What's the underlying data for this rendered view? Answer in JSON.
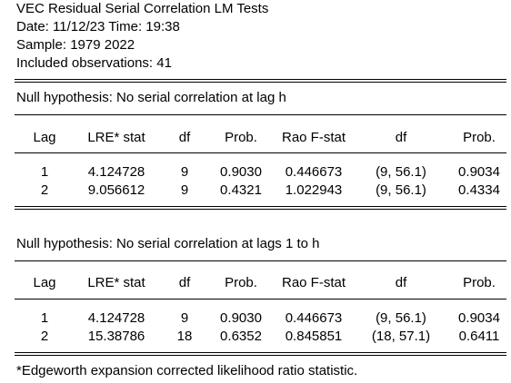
{
  "header": {
    "title": "VEC Residual Serial Correlation LM Tests",
    "date_line": "Date: 11/12/23   Time: 19:38",
    "sample_line": "Sample: 1979 2022",
    "obs_line": "Included observations: 41"
  },
  "columns": [
    "Lag",
    "LRE* stat",
    "df",
    "Prob.",
    "Rao F-stat",
    "df",
    "Prob."
  ],
  "table1": {
    "null_hypothesis": "Null hypothesis: No serial correlation at lag h",
    "rows": [
      [
        "1",
        "4.124728",
        "9",
        "0.9030",
        "0.446673",
        "(9, 56.1)",
        "0.9034"
      ],
      [
        "2",
        "9.056612",
        "9",
        "0.4321",
        "1.022943",
        "(9, 56.1)",
        "0.4334"
      ]
    ]
  },
  "table2": {
    "null_hypothesis": "Null hypothesis: No serial correlation at lags 1 to h",
    "rows": [
      [
        "1",
        "4.124728",
        "9",
        "0.9030",
        "0.446673",
        "(9, 56.1)",
        "0.9034"
      ],
      [
        "2",
        "15.38786",
        "18",
        "0.6352",
        "0.845851",
        "(18, 57.1)",
        "0.6411"
      ]
    ]
  },
  "footnote": "*Edgeworth expansion corrected likelihood ratio statistic."
}
